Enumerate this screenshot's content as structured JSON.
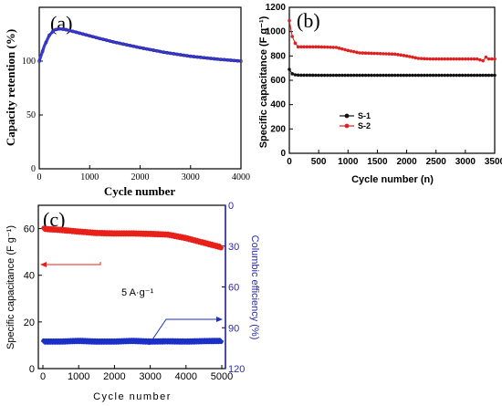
{
  "chart_data": [
    {
      "panel": "(a)",
      "type": "line",
      "xlabel": "Cycle number",
      "ylabel": "Capacity retention (%)",
      "xlim": [
        0,
        4000
      ],
      "ylim": [
        0,
        150
      ],
      "xticks": [
        0,
        1000,
        2000,
        3000,
        4000
      ],
      "yticks": [
        0,
        50,
        100
      ],
      "series": [
        {
          "color": "#3b3bd4",
          "x": [
            0,
            100,
            200,
            300,
            400,
            500,
            600,
            800,
            1000,
            1200,
            1500,
            1800,
            2000,
            2500,
            3000,
            3500,
            4000
          ],
          "y": [
            100,
            114,
            124,
            129,
            130,
            129.5,
            128.5,
            126,
            123.5,
            121,
            117.5,
            114.5,
            112.5,
            108,
            104.5,
            102,
            100
          ]
        }
      ]
    },
    {
      "panel": "(b)",
      "type": "line",
      "xlabel": "Cycle number (n)",
      "ylabel": "Specific capacitance (F g⁻¹)",
      "xlim": [
        0,
        3500
      ],
      "ylim": [
        0,
        1200
      ],
      "xticks": [
        0,
        500,
        1000,
        1500,
        2000,
        2500,
        3000,
        3500
      ],
      "yticks": [
        0,
        200,
        400,
        600,
        800,
        1000,
        1200
      ],
      "legend": "upper-left",
      "series": [
        {
          "name": "S-1",
          "color": "#111111",
          "x": [
            0,
            20,
            60,
            100,
            150,
            200,
            300,
            500,
            1000,
            1500,
            2000,
            2500,
            3000,
            3300,
            3500
          ],
          "y": [
            690,
            665,
            650,
            645,
            643,
            642,
            642,
            641,
            641,
            641,
            641,
            641,
            641,
            641,
            641
          ]
        },
        {
          "name": "S-2",
          "color": "#e02020",
          "x": [
            0,
            30,
            80,
            120,
            150,
            200,
            300,
            500,
            800,
            1000,
            1200,
            1500,
            1800,
            2000,
            2200,
            2400,
            2600,
            2800,
            3000,
            3200,
            3300,
            3350,
            3400,
            3500
          ],
          "y": [
            1090,
            980,
            930,
            880,
            875,
            875,
            875,
            875,
            870,
            845,
            825,
            820,
            815,
            800,
            780,
            775,
            775,
            775,
            775,
            775,
            760,
            790,
            775,
            775
          ]
        }
      ]
    },
    {
      "panel": "(c)",
      "type": "line",
      "xlabel": "Cycle number",
      "ylabel": "Specific capacitance (F g⁻¹)",
      "y2label": "Columbic efficiency (%)",
      "xlim": [
        0,
        5000
      ],
      "ylim": [
        0,
        70
      ],
      "y2lim_inverted": [
        0,
        120
      ],
      "xticks": [
        0,
        1000,
        2000,
        3000,
        4000,
        5000
      ],
      "yticks": [
        0,
        20,
        40,
        60
      ],
      "y2ticks": [
        0,
        30,
        60,
        90,
        120
      ],
      "annotation": "5 A·g⁻¹",
      "series": [
        {
          "color": "#e8201a",
          "axis": "left",
          "x": [
            0,
            500,
            1000,
            1500,
            2000,
            2500,
            3000,
            3500,
            4000,
            4500,
            5000
          ],
          "y": [
            60,
            59.5,
            58.8,
            58.2,
            58,
            58,
            57.8,
            57.5,
            56,
            54,
            52
          ]
        },
        {
          "color": "#1a2fc8",
          "axis": "right",
          "x": [
            0,
            500,
            1000,
            1500,
            2000,
            2500,
            3000,
            3500,
            4000,
            4500,
            5000
          ],
          "y": [
            100,
            100,
            99.5,
            100,
            100,
            99.5,
            100,
            99.8,
            100,
            99.7,
            99.5
          ]
        }
      ]
    }
  ]
}
